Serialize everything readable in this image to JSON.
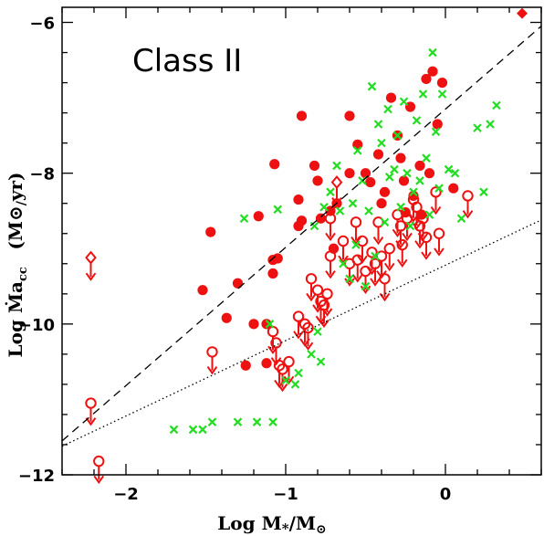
{
  "chart_data": {
    "type": "scatter",
    "title": "",
    "annotation": "Class II",
    "xlabel": "Log M*/M⊙",
    "ylabel": "Log Ṁacc (M⊙/yr)",
    "xlim": [
      -2.4,
      0.6
    ],
    "ylim": [
      -12,
      -5.8
    ],
    "xticks": [
      -2,
      -1,
      0
    ],
    "yticks": [
      -12,
      -10,
      -8,
      -6
    ],
    "x_tick_labels": [
      "−2",
      "−1",
      "0"
    ],
    "y_tick_labels": [
      "−12",
      "−10",
      "−8",
      "−6"
    ],
    "grid": false,
    "colors": {
      "red": "#ee1111",
      "green": "#22dd22",
      "line": "#000000"
    },
    "lines": [
      {
        "style": "dashed",
        "points": [
          [
            -2.4,
            -11.55
          ],
          [
            0.6,
            -6.05
          ]
        ]
      },
      {
        "style": "dotted",
        "points": [
          [
            -2.4,
            -11.62
          ],
          [
            0.6,
            -8.62
          ]
        ]
      }
    ],
    "series": [
      {
        "marker": "filled-circle",
        "color": "#ee1111",
        "points": [
          [
            -1.52,
            -9.55
          ],
          [
            -1.47,
            -8.78
          ],
          [
            -1.37,
            -9.92
          ],
          [
            -1.3,
            -9.46
          ],
          [
            -1.2,
            -10.0
          ],
          [
            -1.25,
            -10.55
          ],
          [
            -1.17,
            -8.57
          ],
          [
            -1.12,
            -10.0
          ],
          [
            -1.12,
            -10.52
          ],
          [
            -1.08,
            -9.15
          ],
          [
            -1.08,
            -9.33
          ],
          [
            -1.07,
            -7.88
          ],
          [
            -1.05,
            -9.13
          ],
          [
            -0.92,
            -8.35
          ],
          [
            -0.92,
            -8.7
          ],
          [
            -0.9,
            -7.24
          ],
          [
            -0.9,
            -8.63
          ],
          [
            -0.82,
            -7.9
          ],
          [
            -0.8,
            -8.1
          ],
          [
            -0.78,
            -8.6
          ],
          [
            -0.72,
            -8.5
          ],
          [
            -0.7,
            -9.0
          ],
          [
            -0.68,
            -8.4
          ],
          [
            -0.6,
            -7.24
          ],
          [
            -0.6,
            -8.0
          ],
          [
            -0.55,
            -7.62
          ],
          [
            -0.5,
            -8.0
          ],
          [
            -0.47,
            -8.12
          ],
          [
            -0.42,
            -7.75
          ],
          [
            -0.4,
            -8.4
          ],
          [
            -0.38,
            -8.25
          ],
          [
            -0.34,
            -7.0
          ],
          [
            -0.3,
            -7.5
          ],
          [
            -0.28,
            -7.8
          ],
          [
            -0.26,
            -8.1
          ],
          [
            -0.25,
            -8.52
          ],
          [
            -0.22,
            -7.12
          ],
          [
            -0.2,
            -8.3
          ],
          [
            -0.16,
            -7.9
          ],
          [
            -0.15,
            -8.55
          ],
          [
            -0.12,
            -6.75
          ],
          [
            -0.1,
            -8.0
          ],
          [
            -0.08,
            -6.65
          ],
          [
            -0.05,
            -7.35
          ],
          [
            -0.02,
            -6.8
          ],
          [
            0.05,
            -8.2
          ]
        ]
      },
      {
        "marker": "open-circle-upper-limit",
        "color": "#ee1111",
        "points": [
          [
            -2.22,
            -11.05
          ],
          [
            -2.17,
            -11.82
          ],
          [
            -1.46,
            -10.37
          ],
          [
            -1.08,
            -10.1
          ],
          [
            -1.06,
            -10.25
          ],
          [
            -1.04,
            -10.55
          ],
          [
            -1.02,
            -10.6
          ],
          [
            -0.98,
            -10.5
          ],
          [
            -0.92,
            -9.9
          ],
          [
            -0.88,
            -10.0
          ],
          [
            -0.86,
            -10.05
          ],
          [
            -0.84,
            -9.4
          ],
          [
            -0.8,
            -9.55
          ],
          [
            -0.78,
            -9.7
          ],
          [
            -0.76,
            -9.75
          ],
          [
            -0.74,
            -9.6
          ],
          [
            -0.72,
            -9.1
          ],
          [
            -0.72,
            -8.6
          ],
          [
            -0.64,
            -8.9
          ],
          [
            -0.6,
            -9.2
          ],
          [
            -0.56,
            -8.65
          ],
          [
            -0.55,
            -9.15
          ],
          [
            -0.52,
            -8.9
          ],
          [
            -0.5,
            -9.3
          ],
          [
            -0.46,
            -9.05
          ],
          [
            -0.44,
            -9.2
          ],
          [
            -0.42,
            -8.65
          ],
          [
            -0.4,
            -9.1
          ],
          [
            -0.38,
            -9.4
          ],
          [
            -0.35,
            -9.0
          ],
          [
            -0.3,
            -8.55
          ],
          [
            -0.28,
            -8.7
          ],
          [
            -0.27,
            -8.95
          ],
          [
            -0.24,
            -8.6
          ],
          [
            -0.2,
            -8.35
          ],
          [
            -0.18,
            -8.45
          ],
          [
            -0.16,
            -8.7
          ],
          [
            -0.14,
            -8.6
          ],
          [
            -0.12,
            -8.85
          ],
          [
            -0.06,
            -8.25
          ],
          [
            -0.04,
            -8.8
          ],
          [
            0.14,
            -8.3
          ]
        ]
      },
      {
        "marker": "open-diamond-upper-limit",
        "color": "#ee1111",
        "points": [
          [
            -2.22,
            -9.12
          ],
          [
            -0.68,
            -8.12
          ]
        ]
      },
      {
        "marker": "filled-diamond",
        "color": "#ee1111",
        "points": [
          [
            0.48,
            -5.88
          ]
        ]
      },
      {
        "marker": "cross",
        "color": "#22dd22",
        "points": [
          [
            -1.7,
            -11.4
          ],
          [
            -1.58,
            -11.4
          ],
          [
            -1.52,
            -11.4
          ],
          [
            -1.46,
            -11.3
          ],
          [
            -1.3,
            -11.3
          ],
          [
            -1.18,
            -11.3
          ],
          [
            -1.08,
            -11.3
          ],
          [
            -1.1,
            -10.0
          ],
          [
            -1.26,
            -8.6
          ],
          [
            -1.05,
            -8.48
          ],
          [
            -1.0,
            -10.75
          ],
          [
            -0.94,
            -10.8
          ],
          [
            -0.92,
            -10.65
          ],
          [
            -0.84,
            -10.4
          ],
          [
            -0.8,
            -10.1
          ],
          [
            -0.78,
            -10.5
          ],
          [
            -0.82,
            -8.7
          ],
          [
            -0.76,
            -8.45
          ],
          [
            -0.72,
            -8.25
          ],
          [
            -0.68,
            -7.9
          ],
          [
            -0.66,
            -8.5
          ],
          [
            -0.64,
            -9.2
          ],
          [
            -0.6,
            -9.4
          ],
          [
            -0.58,
            -8.4
          ],
          [
            -0.56,
            -8.95
          ],
          [
            -0.55,
            -7.7
          ],
          [
            -0.52,
            -8.1
          ],
          [
            -0.5,
            -9.5
          ],
          [
            -0.48,
            -8.5
          ],
          [
            -0.46,
            -6.85
          ],
          [
            -0.44,
            -9.1
          ],
          [
            -0.42,
            -7.35
          ],
          [
            -0.4,
            -7.6
          ],
          [
            -0.38,
            -8.65
          ],
          [
            -0.36,
            -7.15
          ],
          [
            -0.35,
            -8.05
          ],
          [
            -0.32,
            -7.95
          ],
          [
            -0.3,
            -7.5
          ],
          [
            -0.28,
            -8.45
          ],
          [
            -0.26,
            -7.05
          ],
          [
            -0.24,
            -8.0
          ],
          [
            -0.22,
            -8.7
          ],
          [
            -0.2,
            -8.25
          ],
          [
            -0.18,
            -7.3
          ],
          [
            -0.16,
            -8.1
          ],
          [
            -0.14,
            -6.95
          ],
          [
            -0.12,
            -7.8
          ],
          [
            -0.1,
            -8.55
          ],
          [
            -0.08,
            -6.4
          ],
          [
            -0.06,
            -7.45
          ],
          [
            -0.04,
            -8.2
          ],
          [
            -0.02,
            -6.95
          ],
          [
            0.02,
            -7.95
          ],
          [
            0.06,
            -8.0
          ],
          [
            0.1,
            -8.6
          ],
          [
            0.2,
            -7.4
          ],
          [
            0.24,
            -8.25
          ],
          [
            0.28,
            -7.35
          ],
          [
            0.32,
            -7.1
          ]
        ]
      }
    ]
  }
}
